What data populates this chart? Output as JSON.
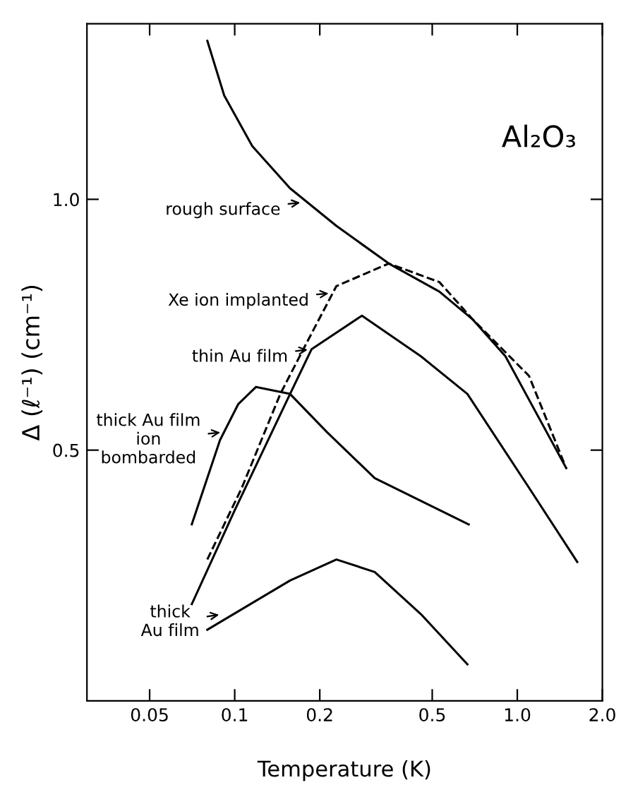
{
  "chart_data": {
    "type": "line",
    "xlabel": "Temperature (K)",
    "ylabel": "Δ (ℓ⁻¹) (cm⁻¹)",
    "log": "x",
    "xlim": [
      0.03,
      2.0
    ],
    "xticks": [
      0.05,
      0.1,
      0.2,
      0.5,
      {
        "value": 1,
        "label": "1.0"
      },
      {
        "value": 2,
        "label": "2.0"
      }
    ],
    "ylim": [
      0,
      1.35
    ],
    "yticks": [
      0.5,
      {
        "value": 1,
        "label": "1.0"
      }
    ],
    "grid": false,
    "marker": "none",
    "series": [
      {
        "color": "#000000",
        "line_style": "solid",
        "x": [
          0.08,
          0.0918,
          0.1154,
          0.157,
          0.229,
          0.351,
          0.53,
          0.697,
          0.908,
          1.49
        ],
        "values": [
          1.316,
          1.207,
          1.106,
          1.022,
          0.947,
          0.872,
          0.816,
          0.76,
          0.687,
          0.464
        ]
      },
      {
        "color": "#000000",
        "line_style": "dashed",
        "x": [
          0.08,
          0.106,
          0.145,
          0.176,
          0.229,
          0.351,
          0.53,
          0.697,
          1.1,
          1.47
        ],
        "values": [
          0.282,
          0.425,
          0.612,
          0.704,
          0.827,
          0.872,
          0.835,
          0.76,
          0.648,
          0.472
        ]
      },
      {
        "color": "#000000",
        "line_style": "solid",
        "x": [
          0.0705,
          0.1,
          0.157,
          0.187,
          0.282,
          0.456,
          0.666,
          1.1,
          1.63
        ],
        "values": [
          0.193,
          0.38,
          0.612,
          0.701,
          0.768,
          0.687,
          0.612,
          0.425,
          0.277
        ]
      },
      {
        "color": "#000000",
        "line_style": "solid",
        "x": [
          0.0705,
          0.0887,
          0.103,
          0.119,
          0.157,
          0.212,
          0.313,
          0.673
        ],
        "values": [
          0.352,
          0.52,
          0.592,
          0.626,
          0.612,
          0.536,
          0.444,
          0.352
        ]
      },
      {
        "color": "#000000",
        "line_style": "solid",
        "x": [
          0.08,
          0.157,
          0.229,
          0.313,
          0.456,
          0.666
        ],
        "values": [
          0.142,
          0.24,
          0.282,
          0.257,
          0.173,
          0.073
        ]
      }
    ],
    "annotations": [
      "Al₂O₃",
      {
        "text": "rough surface",
        "x": 0.176,
        "y": 0.994
      },
      {
        "text": "Xe ion implanted",
        "x": 0.222,
        "y": 0.813
      },
      {
        "text": "thin Au film",
        "x": 0.187,
        "y": 0.701
      },
      {
        "text": "thick Au film\nion\nbombarded",
        "x": 0.0918,
        "y": 0.536
      },
      {
        "text": "thick\nAu film",
        "x": 0.0909,
        "y": 0.173
      }
    ]
  }
}
